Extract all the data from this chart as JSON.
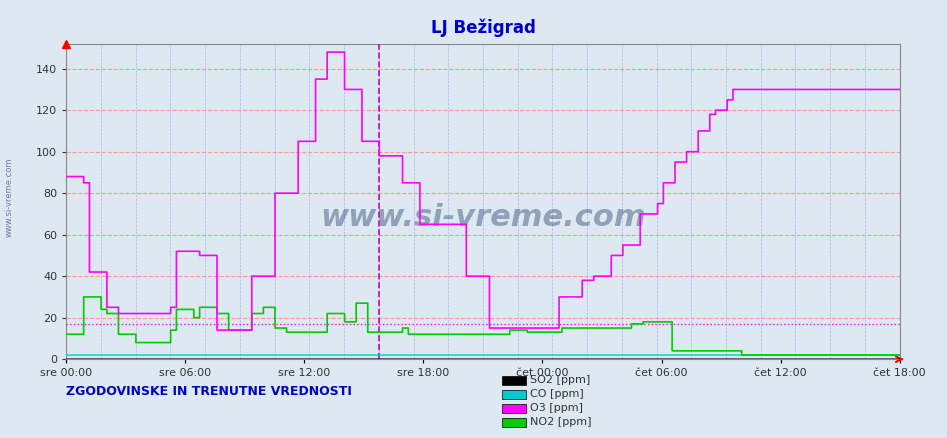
{
  "title": "LJ Bežigrad",
  "title_color": "#0000cc",
  "bg_color": "#dde8f0",
  "plot_bg_color": "#dde8f0",
  "ylabel": "",
  "xlabel": "",
  "ylim": [
    0,
    152
  ],
  "yticks": [
    0,
    20,
    40,
    60,
    80,
    100,
    120,
    140
  ],
  "xtick_labels": [
    "sre 00:00",
    "sre 06:00",
    "sre 12:00",
    "sre 18:00",
    "čet 00:00",
    "čet 06:00",
    "čet 12:00",
    "čet 18:00"
  ],
  "n_points": 576,
  "hours_total": 48,
  "vline_x": 0.5,
  "hline_y": 17,
  "hline_color": "#ff00ff",
  "vline_color": "#cc00cc",
  "grid_h_color": "#ff9999",
  "grid_v_color": "#9999ff",
  "so2_color": "#000000",
  "co_color": "#00cccc",
  "o3_color": "#ff00ff",
  "no2_color": "#00cc00",
  "watermark_color": "#1a3a6a",
  "legend_label_so2": "SO2 [ppm]",
  "legend_label_co": "CO [ppm]",
  "legend_label_o3": "O3 [ppm]",
  "legend_label_no2": "NO2 [ppm]",
  "bottom_text": "ZGODOVINSKE IN TRENUTNE VREDNOSTI",
  "bottom_text_color": "#0000cc",
  "sidebar_text": "www.si-vreme.com",
  "sidebar_color": "#1a3a6a",
  "o3_data": [
    88,
    88,
    88,
    88,
    88,
    88,
    88,
    88,
    88,
    88,
    88,
    88,
    85,
    85,
    85,
    85,
    42,
    42,
    42,
    42,
    42,
    42,
    42,
    42,
    42,
    42,
    42,
    42,
    25,
    25,
    25,
    25,
    25,
    25,
    25,
    25,
    22,
    22,
    22,
    22,
    22,
    22,
    22,
    22,
    22,
    22,
    22,
    22,
    22,
    22,
    22,
    22,
    22,
    22,
    22,
    22,
    22,
    22,
    22,
    22,
    22,
    22,
    22,
    22,
    22,
    22,
    22,
    22,
    22,
    22,
    22,
    22,
    25,
    25,
    25,
    25,
    52,
    52,
    52,
    52,
    52,
    52,
    52,
    52,
    52,
    52,
    52,
    52,
    52,
    52,
    52,
    52,
    50,
    50,
    50,
    50,
    50,
    50,
    50,
    50,
    50,
    50,
    50,
    50,
    14,
    14,
    14,
    14,
    14,
    14,
    14,
    14,
    14,
    14,
    14,
    14,
    14,
    14,
    14,
    14,
    14,
    14,
    14,
    14,
    14,
    14,
    14,
    14,
    40,
    40,
    40,
    40,
    40,
    40,
    40,
    40,
    40,
    40,
    40,
    40,
    40,
    40,
    40,
    40,
    80,
    80,
    80,
    80,
    80,
    80,
    80,
    80,
    80,
    80,
    80,
    80,
    80,
    80,
    80,
    80,
    105,
    105,
    105,
    105,
    105,
    105,
    105,
    105,
    105,
    105,
    105,
    105,
    135,
    135,
    135,
    135,
    135,
    135,
    135,
    135,
    148,
    148,
    148,
    148,
    148,
    148,
    148,
    148,
    148,
    148,
    148,
    148,
    130,
    130,
    130,
    130,
    130,
    130,
    130,
    130,
    130,
    130,
    130,
    130,
    105,
    105,
    105,
    105,
    105,
    105,
    105,
    105,
    105,
    105,
    105,
    105,
    98,
    98,
    98,
    98,
    98,
    98,
    98,
    98,
    98,
    98,
    98,
    98,
    98,
    98,
    98,
    98,
    85,
    85,
    85,
    85,
    85,
    85,
    85,
    85,
    85,
    85,
    85,
    85,
    65,
    65,
    65,
    65,
    65,
    65,
    65,
    65,
    65,
    65,
    65,
    65,
    65,
    65,
    65,
    65,
    65,
    65,
    65,
    65,
    65,
    65,
    65,
    65,
    65,
    65,
    65,
    65,
    65,
    65,
    65,
    65,
    40,
    40,
    40,
    40,
    40,
    40,
    40,
    40,
    40,
    40,
    40,
    40,
    40,
    40,
    40,
    40,
    15,
    15,
    15,
    15,
    15,
    15,
    15,
    15,
    15,
    15,
    15,
    15,
    15,
    15,
    15,
    15,
    15,
    15,
    15,
    15,
    15,
    15,
    15,
    15,
    15,
    15,
    15,
    15,
    15,
    15,
    15,
    15,
    15,
    15,
    15,
    15,
    15,
    15,
    15,
    15,
    15,
    15,
    15,
    15,
    15,
    15,
    15,
    15,
    30,
    30,
    30,
    30,
    30,
    30,
    30,
    30,
    30,
    30,
    30,
    30,
    30,
    30,
    30,
    30,
    38,
    38,
    38,
    38,
    38,
    38,
    38,
    38,
    40,
    40,
    40,
    40,
    40,
    40,
    40,
    40,
    40,
    40,
    40,
    40,
    50,
    50,
    50,
    50,
    50,
    50,
    50,
    50,
    55,
    55,
    55,
    55,
    55,
    55,
    55,
    55,
    55,
    55,
    55,
    55,
    70,
    70,
    70,
    70,
    70,
    70,
    70,
    70,
    70,
    70,
    70,
    70,
    75,
    75,
    75,
    75,
    85,
    85,
    85,
    85,
    85,
    85,
    85,
    85,
    95,
    95,
    95,
    95,
    95,
    95,
    95,
    95,
    100,
    100,
    100,
    100,
    100,
    100,
    100,
    100,
    110,
    110,
    110,
    110,
    110,
    110,
    110,
    110,
    118,
    118,
    118,
    118,
    120,
    120,
    120,
    120,
    120,
    120,
    120,
    120,
    125,
    125,
    125,
    125,
    130,
    130,
    130,
    130,
    130,
    130,
    130,
    130,
    130,
    130,
    130,
    130,
    130,
    130,
    130,
    130,
    130,
    130,
    130,
    130,
    130,
    130,
    130,
    130,
    130,
    130,
    130,
    130,
    130,
    130,
    130,
    130,
    130,
    130,
    130,
    130,
    130,
    130,
    130,
    130,
    130,
    130,
    130,
    130,
    130,
    130,
    130,
    130,
    130,
    130,
    130,
    130,
    130,
    130,
    130,
    130,
    130,
    130,
    130,
    130,
    130,
    130,
    130,
    130,
    130,
    130,
    130,
    130,
    130,
    130,
    130,
    130,
    130,
    130,
    130,
    130,
    130,
    130,
    130,
    130,
    130,
    130,
    130,
    130,
    130,
    130,
    130,
    130,
    130,
    130,
    130,
    130,
    130,
    130,
    130,
    130,
    130,
    130,
    130,
    130,
    130,
    130,
    130,
    130,
    130,
    130,
    130,
    130,
    130,
    130,
    130,
    130,
    130,
    130,
    130,
    130
  ],
  "no2_data": [
    12,
    12,
    12,
    12,
    12,
    12,
    12,
    12,
    12,
    12,
    12,
    12,
    30,
    30,
    30,
    30,
    30,
    30,
    30,
    30,
    30,
    30,
    30,
    30,
    24,
    24,
    24,
    24,
    22,
    22,
    22,
    22,
    22,
    22,
    22,
    22,
    12,
    12,
    12,
    12,
    12,
    12,
    12,
    12,
    12,
    12,
    12,
    12,
    8,
    8,
    8,
    8,
    8,
    8,
    8,
    8,
    8,
    8,
    8,
    8,
    8,
    8,
    8,
    8,
    8,
    8,
    8,
    8,
    8,
    8,
    8,
    8,
    14,
    14,
    14,
    14,
    24,
    24,
    24,
    24,
    24,
    24,
    24,
    24,
    24,
    24,
    24,
    24,
    20,
    20,
    20,
    20,
    25,
    25,
    25,
    25,
    25,
    25,
    25,
    25,
    25,
    25,
    25,
    25,
    22,
    22,
    22,
    22,
    22,
    22,
    22,
    22,
    14,
    14,
    14,
    14,
    14,
    14,
    14,
    14,
    14,
    14,
    14,
    14,
    14,
    14,
    14,
    14,
    22,
    22,
    22,
    22,
    22,
    22,
    22,
    22,
    25,
    25,
    25,
    25,
    25,
    25,
    25,
    25,
    15,
    15,
    15,
    15,
    15,
    15,
    15,
    15,
    13,
    13,
    13,
    13,
    13,
    13,
    13,
    13,
    13,
    13,
    13,
    13,
    13,
    13,
    13,
    13,
    13,
    13,
    13,
    13,
    13,
    13,
    13,
    13,
    13,
    13,
    13,
    13,
    22,
    22,
    22,
    22,
    22,
    22,
    22,
    22,
    22,
    22,
    22,
    22,
    18,
    18,
    18,
    18,
    18,
    18,
    18,
    18,
    27,
    27,
    27,
    27,
    27,
    27,
    27,
    27,
    13,
    13,
    13,
    13,
    13,
    13,
    13,
    13,
    13,
    13,
    13,
    13,
    13,
    13,
    13,
    13,
    13,
    13,
    13,
    13,
    13,
    13,
    13,
    13,
    15,
    15,
    15,
    15,
    12,
    12,
    12,
    12,
    12,
    12,
    12,
    12,
    12,
    12,
    12,
    12,
    12,
    12,
    12,
    12,
    12,
    12,
    12,
    12,
    12,
    12,
    12,
    12,
    12,
    12,
    12,
    12,
    12,
    12,
    12,
    12,
    12,
    12,
    12,
    12,
    12,
    12,
    12,
    12,
    12,
    12,
    12,
    12,
    12,
    12,
    12,
    12,
    12,
    12,
    12,
    12,
    12,
    12,
    12,
    12,
    12,
    12,
    12,
    12,
    12,
    12,
    12,
    12,
    12,
    12,
    12,
    12,
    12,
    12,
    14,
    14,
    14,
    14,
    14,
    14,
    14,
    14,
    14,
    14,
    14,
    14,
    13,
    13,
    13,
    13,
    13,
    13,
    13,
    13,
    13,
    13,
    13,
    13,
    13,
    13,
    13,
    13,
    13,
    13,
    13,
    13,
    13,
    13,
    13,
    13,
    15,
    15,
    15,
    15,
    15,
    15,
    15,
    15,
    15,
    15,
    15,
    15,
    15,
    15,
    15,
    15,
    15,
    15,
    15,
    15,
    15,
    15,
    15,
    15,
    15,
    15,
    15,
    15,
    15,
    15,
    15,
    15,
    15,
    15,
    15,
    15,
    15,
    15,
    15,
    15,
    15,
    15,
    15,
    15,
    15,
    15,
    15,
    15,
    17,
    17,
    17,
    17,
    17,
    17,
    17,
    17,
    18,
    18,
    18,
    18,
    18,
    18,
    18,
    18,
    18,
    18,
    18,
    18,
    18,
    18,
    18,
    18,
    18,
    18,
    18,
    18,
    4,
    4,
    4,
    4,
    4,
    4,
    4,
    4,
    4,
    4,
    4,
    4,
    4,
    4,
    4,
    4,
    4,
    4,
    4,
    4,
    4,
    4,
    4,
    4,
    4,
    4,
    4,
    4,
    4,
    4,
    4,
    4,
    4,
    4,
    4,
    4,
    4,
    4,
    4,
    4,
    4,
    4,
    4,
    4,
    4,
    4,
    4,
    4,
    2,
    2,
    2,
    2,
    2,
    2,
    2,
    2,
    2,
    2,
    2,
    2,
    2,
    2,
    2,
    2,
    2,
    2,
    2,
    2,
    2,
    2,
    2,
    2,
    2,
    2,
    2,
    2,
    2,
    2,
    2,
    2,
    2,
    2,
    2,
    2,
    2,
    2,
    2,
    2,
    2,
    2,
    2,
    2,
    2,
    2,
    2,
    2,
    2,
    2,
    2,
    2,
    2,
    2,
    2,
    2,
    2,
    2,
    2,
    2,
    2,
    2,
    2,
    2,
    2,
    2,
    2,
    2,
    2,
    2,
    2,
    2,
    2,
    2,
    2,
    2,
    2,
    2,
    2,
    2,
    2,
    2,
    2,
    2,
    2,
    2,
    2,
    2,
    2,
    2,
    2,
    2,
    2,
    2,
    2,
    2,
    2,
    2,
    2,
    2,
    2,
    2,
    2,
    2,
    2,
    2,
    2,
    2,
    2,
    2
  ],
  "so2_data_sparse": {
    "x": [
      0,
      1,
      2,
      3,
      4,
      5,
      6,
      7,
      8,
      9,
      10,
      11,
      12,
      13,
      14,
      15,
      16
    ],
    "y": [
      0,
      0,
      0,
      0,
      0,
      0,
      0,
      0,
      0,
      0,
      0,
      0,
      0,
      0,
      0,
      0,
      0
    ]
  },
  "co_value": 2
}
